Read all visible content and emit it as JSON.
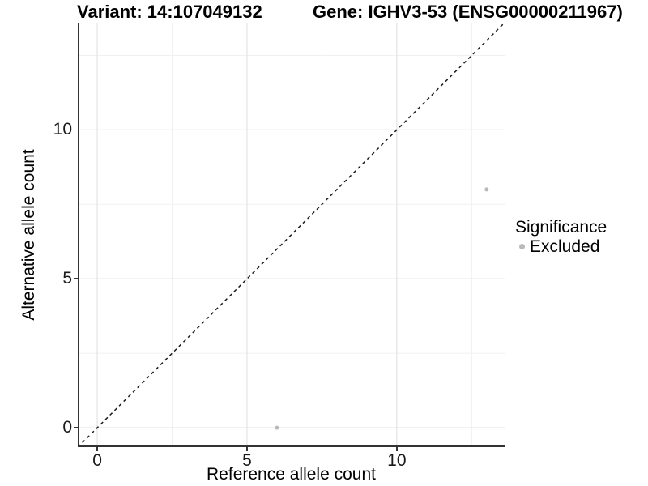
{
  "chart_data": {
    "type": "scatter",
    "title_left": "Variant: 14:107049132",
    "title_right": "Gene: IGHV3-53 (ENSG00000211967)",
    "xlabel": "Reference allele count",
    "ylabel": "Alternative allele count",
    "xlim": [
      -0.65,
      13.6
    ],
    "ylim": [
      -0.65,
      13.6
    ],
    "x_major_ticks": [
      0,
      5,
      10
    ],
    "y_major_ticks": [
      0,
      5,
      10
    ],
    "x_minor_ticks": [
      2.5,
      7.5,
      12.5
    ],
    "y_minor_ticks": [
      2.5,
      7.5,
      12.5
    ],
    "grid": true,
    "points": [
      {
        "x": 6,
        "y": 0,
        "series": "Excluded"
      },
      {
        "x": 13,
        "y": 8,
        "series": "Excluded"
      }
    ],
    "reference_line": {
      "slope": 1,
      "intercept": 0,
      "linetype": "dashed"
    },
    "legend": {
      "title": "Significance",
      "position": "right",
      "items": [
        {
          "label": "Excluded",
          "color": "#b9b9b9"
        }
      ]
    },
    "style": {
      "point_color": "#b9b9b9",
      "point_radius": 2.5,
      "line_color": "#1a1a1a",
      "axis_line_color": "#333333",
      "grid_major_color": "#e3e3e3",
      "grid_minor_color": "#f0f0f0",
      "background": "#ffffff",
      "text_color": "#000000"
    }
  }
}
